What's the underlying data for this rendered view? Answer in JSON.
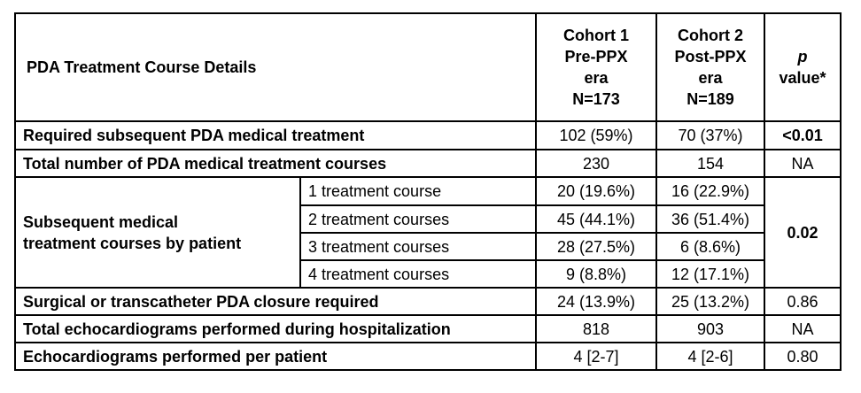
{
  "table": {
    "header": {
      "title": "PDA Treatment Course Details",
      "cohort1": [
        "Cohort 1",
        "Pre-PPX",
        "era",
        "N=173"
      ],
      "cohort2": [
        "Cohort 2",
        "Post-PPX",
        "era",
        "N=189"
      ],
      "p_italic": "p",
      "p_rest": "value*"
    },
    "rows": {
      "required_treatment": {
        "label": "Required subsequent PDA medical treatment",
        "c1": "102 (59%)",
        "c2": "70 (37%)",
        "p": "<0.01"
      },
      "total_courses": {
        "label": "Total number of PDA medical treatment courses",
        "c1": "230",
        "c2": "154",
        "p": "NA"
      },
      "subsequent": {
        "label_line1": "Subsequent medical",
        "label_line2": "treatment courses by patient",
        "p": "0.02",
        "sub": [
          {
            "label": "1 treatment course",
            "c1": "20 (19.6%)",
            "c2": "16 (22.9%)"
          },
          {
            "label": "2 treatment courses",
            "c1": "45 (44.1%)",
            "c2": "36 (51.4%)"
          },
          {
            "label": "3 treatment courses",
            "c1": "28 (27.5%)",
            "c2": "6 (8.6%)"
          },
          {
            "label": "4 treatment courses",
            "c1": "9 (8.8%)",
            "c2": "12 (17.1%)"
          }
        ]
      },
      "surgical": {
        "label": "Surgical or transcatheter PDA closure required",
        "c1": "24 (13.9%)",
        "c2": "25 (13.2%)",
        "p": "0.86"
      },
      "total_echo": {
        "label": "Total echocardiograms performed during hospitalization",
        "c1": "818",
        "c2": "903",
        "p": "NA"
      },
      "echo_per_patient": {
        "label": "Echocardiograms performed per patient",
        "c1": "4 [2-7]",
        "c2": "4 [2-6]",
        "p": "0.80"
      }
    }
  }
}
